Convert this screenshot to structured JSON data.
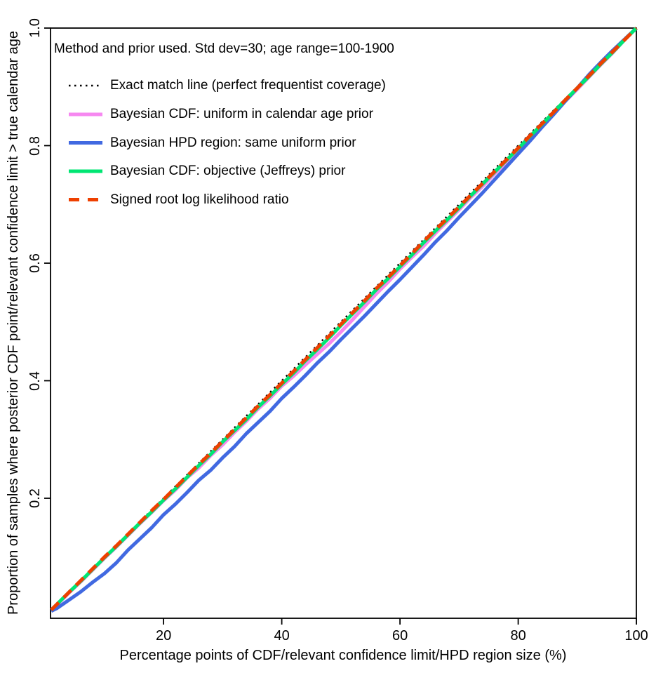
{
  "legend": {
    "title": "Method and prior used. Std dev=30; age range=100-1900",
    "items": [
      {
        "label": "Exact match line (perfect frequentist coverage)",
        "color": "#000000",
        "style": "dotted"
      },
      {
        "label": "Bayesian CDF: uniform in calendar age prior",
        "color": "#F688F0",
        "style": "solid"
      },
      {
        "label": "Bayesian HPD region: same uniform prior",
        "color": "#4169E1",
        "style": "solid"
      },
      {
        "label": "Bayesian CDF: objective (Jeffreys) prior",
        "color": "#00E673",
        "style": "solid"
      },
      {
        "label": "Signed root log likelihood ratio",
        "color": "#EE4000",
        "style": "dashed"
      }
    ]
  },
  "chart_data": {
    "type": "line",
    "title": "",
    "xlabel": "Percentage points of CDF/relevant confidence limit/HPD region size (%)",
    "ylabel": "Proportion of samples where posterior CDF point/relevant confidence limit > true calendar age",
    "xlim": [
      0,
      100
    ],
    "ylim": [
      0,
      1
    ],
    "x_ticks": [
      20,
      40,
      60,
      80,
      100
    ],
    "x_tick_labels": [
      "20",
      "40",
      "60",
      "80",
      "100"
    ],
    "y_ticks": [
      0.2,
      0.4,
      0.6,
      0.8,
      1.0
    ],
    "y_tick_labels": [
      "0.2",
      "0.4",
      "0.6",
      "0.8",
      "1.0"
    ],
    "grid": false,
    "legend_position": "top-left-inside",
    "series": [
      {
        "name": "exact-match-line",
        "color": "#000000",
        "style": "dotted",
        "width": 2.4,
        "x": [
          1,
          100
        ],
        "y": [
          0.01,
          1.0
        ]
      },
      {
        "name": "bayesian-cdf-uniform-prior",
        "color": "#F688F0",
        "style": "solid",
        "width": 5,
        "x": [
          1,
          2,
          4,
          6,
          8,
          10,
          12,
          14,
          16,
          18,
          20,
          22,
          24,
          26,
          28,
          30,
          32,
          34,
          36,
          38,
          40,
          42,
          44,
          46,
          48,
          50,
          52,
          54,
          56,
          58,
          60,
          62,
          64,
          66,
          68,
          70,
          72,
          74,
          76,
          78,
          80,
          82,
          84,
          86,
          88,
          90,
          92,
          94,
          96,
          98,
          100
        ],
        "y": [
          0.01,
          0.019,
          0.039,
          0.058,
          0.078,
          0.098,
          0.117,
          0.137,
          0.157,
          0.176,
          0.196,
          0.214,
          0.235,
          0.252,
          0.273,
          0.291,
          0.312,
          0.331,
          0.352,
          0.37,
          0.391,
          0.408,
          0.427,
          0.445,
          0.463,
          0.483,
          0.504,
          0.526,
          0.548,
          0.568,
          0.59,
          0.61,
          0.629,
          0.651,
          0.671,
          0.691,
          0.712,
          0.731,
          0.752,
          0.772,
          0.793,
          0.813,
          0.834,
          0.855,
          0.876,
          0.896,
          0.917,
          0.938,
          0.958,
          0.98,
          1.0
        ]
      },
      {
        "name": "bayesian-hpd-uniform-prior",
        "color": "#4169E1",
        "style": "solid",
        "width": 5,
        "x": [
          1,
          2,
          4,
          6,
          8,
          10,
          12,
          14,
          16,
          18,
          20,
          22,
          24,
          26,
          28,
          30,
          32,
          34,
          36,
          38,
          40,
          42,
          44,
          46,
          48,
          50,
          52,
          54,
          56,
          58,
          60,
          62,
          64,
          66,
          68,
          70,
          72,
          74,
          76,
          78,
          80,
          82,
          84,
          86,
          88,
          90,
          92,
          94,
          96,
          98,
          100
        ],
        "y": [
          0.008,
          0.013,
          0.027,
          0.041,
          0.057,
          0.072,
          0.09,
          0.112,
          0.131,
          0.15,
          0.172,
          0.19,
          0.21,
          0.231,
          0.248,
          0.269,
          0.288,
          0.31,
          0.329,
          0.348,
          0.37,
          0.389,
          0.409,
          0.43,
          0.449,
          0.47,
          0.49,
          0.51,
          0.531,
          0.552,
          0.572,
          0.593,
          0.614,
          0.636,
          0.656,
          0.678,
          0.699,
          0.72,
          0.742,
          0.764,
          0.786,
          0.808,
          0.831,
          0.853,
          0.876,
          0.898,
          0.921,
          0.942,
          0.962,
          0.981,
          1.0
        ]
      },
      {
        "name": "bayesian-cdf-jeffreys-prior",
        "color": "#00E673",
        "style": "solid",
        "width": 5,
        "x": [
          1,
          2,
          4,
          6,
          8,
          10,
          12,
          14,
          16,
          18,
          20,
          22,
          24,
          26,
          28,
          30,
          32,
          34,
          36,
          38,
          40,
          42,
          44,
          46,
          48,
          50,
          52,
          54,
          56,
          58,
          60,
          62,
          64,
          66,
          68,
          70,
          72,
          74,
          76,
          78,
          80,
          82,
          84,
          86,
          88,
          90,
          92,
          94,
          96,
          98,
          100
        ],
        "y": [
          0.01,
          0.02,
          0.04,
          0.059,
          0.079,
          0.099,
          0.118,
          0.138,
          0.158,
          0.177,
          0.197,
          0.216,
          0.236,
          0.256,
          0.275,
          0.296,
          0.315,
          0.334,
          0.355,
          0.374,
          0.394,
          0.413,
          0.434,
          0.453,
          0.473,
          0.494,
          0.514,
          0.534,
          0.555,
          0.574,
          0.594,
          0.614,
          0.635,
          0.655,
          0.674,
          0.694,
          0.715,
          0.735,
          0.755,
          0.775,
          0.795,
          0.816,
          0.836,
          0.857,
          0.878,
          0.898,
          0.918,
          0.939,
          0.959,
          0.98,
          1.0
        ]
      },
      {
        "name": "signed-root-log-likelihood-ratio",
        "color": "#EE4000",
        "style": "dashed",
        "width": 5,
        "x": [
          1,
          2,
          4,
          6,
          8,
          10,
          12,
          14,
          16,
          18,
          20,
          22,
          24,
          26,
          28,
          30,
          32,
          34,
          36,
          38,
          40,
          42,
          44,
          46,
          48,
          50,
          52,
          54,
          56,
          58,
          60,
          62,
          64,
          66,
          68,
          70,
          72,
          74,
          76,
          78,
          80,
          82,
          84,
          86,
          88,
          90,
          92,
          94,
          96,
          98,
          100
        ],
        "y": [
          0.01,
          0.02,
          0.04,
          0.06,
          0.08,
          0.1,
          0.119,
          0.139,
          0.159,
          0.179,
          0.198,
          0.218,
          0.238,
          0.258,
          0.277,
          0.297,
          0.317,
          0.337,
          0.357,
          0.376,
          0.396,
          0.416,
          0.436,
          0.456,
          0.476,
          0.496,
          0.516,
          0.536,
          0.557,
          0.576,
          0.596,
          0.616,
          0.637,
          0.657,
          0.676,
          0.696,
          0.716,
          0.736,
          0.756,
          0.776,
          0.796,
          0.817,
          0.837,
          0.857,
          0.878,
          0.898,
          0.919,
          0.94,
          0.96,
          0.98,
          1.0
        ]
      }
    ]
  }
}
